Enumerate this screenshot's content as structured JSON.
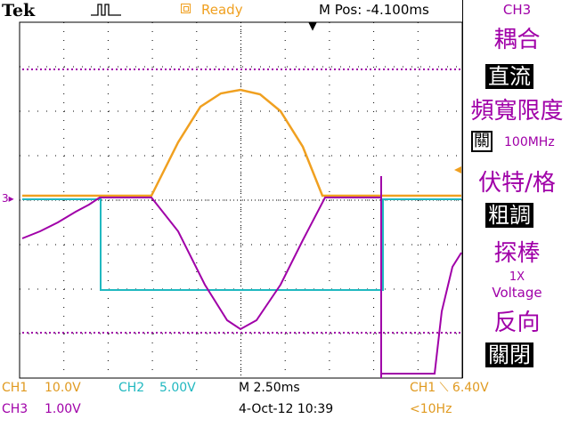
{
  "header": {
    "brand": "Tek",
    "status": "Ready",
    "m_pos": "M Pos: -4.100ms"
  },
  "menu": {
    "channel": "CH3",
    "coupling_label": "耦合",
    "coupling_value": "直流",
    "bw_limit_label": "頻寬限度",
    "bw_limit_value": "關",
    "bw_limit_freq": "100MHz",
    "volts_div_label": "伏特/格",
    "volts_div_value": "粗調",
    "probe_label": "探棒",
    "probe_value": "1X",
    "probe_unit": "Voltage",
    "invert_label": "反向",
    "invert_value": "關閉"
  },
  "readouts": {
    "ch1_label": "CH1",
    "ch1_scale": "10.0V",
    "ch2_label": "CH2",
    "ch2_scale": "5.00V",
    "ch3_label": "CH3",
    "ch3_scale": "1.00V",
    "timebase": "M 2.50ms",
    "date_time": "4-Oct-12 10:39",
    "trigger": "CH1 ⟍ 6.40V",
    "freq": "<10Hz"
  },
  "channel_marker": "3",
  "colors": {
    "ch1": "#f0a020",
    "ch2": "#20b8c0",
    "ch3": "#a000a8",
    "grid": "#000000"
  }
}
